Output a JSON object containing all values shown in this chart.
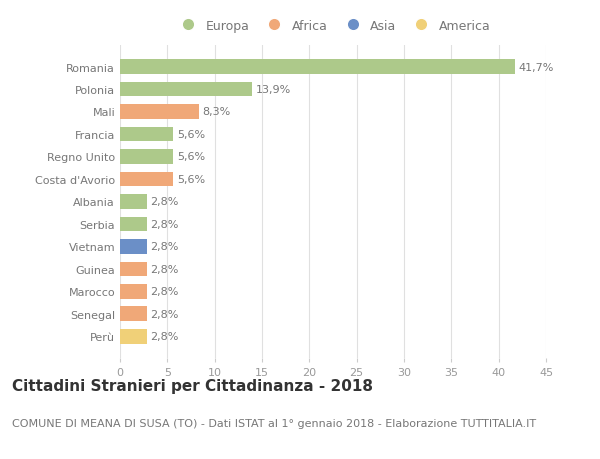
{
  "countries": [
    "Romania",
    "Polonia",
    "Mali",
    "Francia",
    "Regno Unito",
    "Costa d'Avorio",
    "Albania",
    "Serbia",
    "Vietnam",
    "Guinea",
    "Marocco",
    "Senegal",
    "Perù"
  ],
  "values": [
    41.7,
    13.9,
    8.3,
    5.6,
    5.6,
    5.6,
    2.8,
    2.8,
    2.8,
    2.8,
    2.8,
    2.8,
    2.8
  ],
  "labels": [
    "41,7%",
    "13,9%",
    "8,3%",
    "5,6%",
    "5,6%",
    "5,6%",
    "2,8%",
    "2,8%",
    "2,8%",
    "2,8%",
    "2,8%",
    "2,8%",
    "2,8%"
  ],
  "continents": [
    "Europa",
    "Europa",
    "Africa",
    "Europa",
    "Europa",
    "Africa",
    "Europa",
    "Europa",
    "Asia",
    "Africa",
    "Africa",
    "Africa",
    "America"
  ],
  "colors": {
    "Europa": "#adc98a",
    "Africa": "#f0a878",
    "Asia": "#6b8fc7",
    "America": "#f0d078"
  },
  "legend_order": [
    "Europa",
    "Africa",
    "Asia",
    "America"
  ],
  "title": "Cittadini Stranieri per Cittadinanza - 2018",
  "subtitle": "COMUNE DI MEANA DI SUSA (TO) - Dati ISTAT al 1° gennaio 2018 - Elaborazione TUTTITALIA.IT",
  "xlim": [
    0,
    45
  ],
  "xticks": [
    0,
    5,
    10,
    15,
    20,
    25,
    30,
    35,
    40,
    45
  ],
  "bg_color": "#ffffff",
  "grid_color": "#e0e0e0",
  "title_fontsize": 11,
  "subtitle_fontsize": 8,
  "label_fontsize": 8,
  "tick_fontsize": 8,
  "legend_fontsize": 9
}
